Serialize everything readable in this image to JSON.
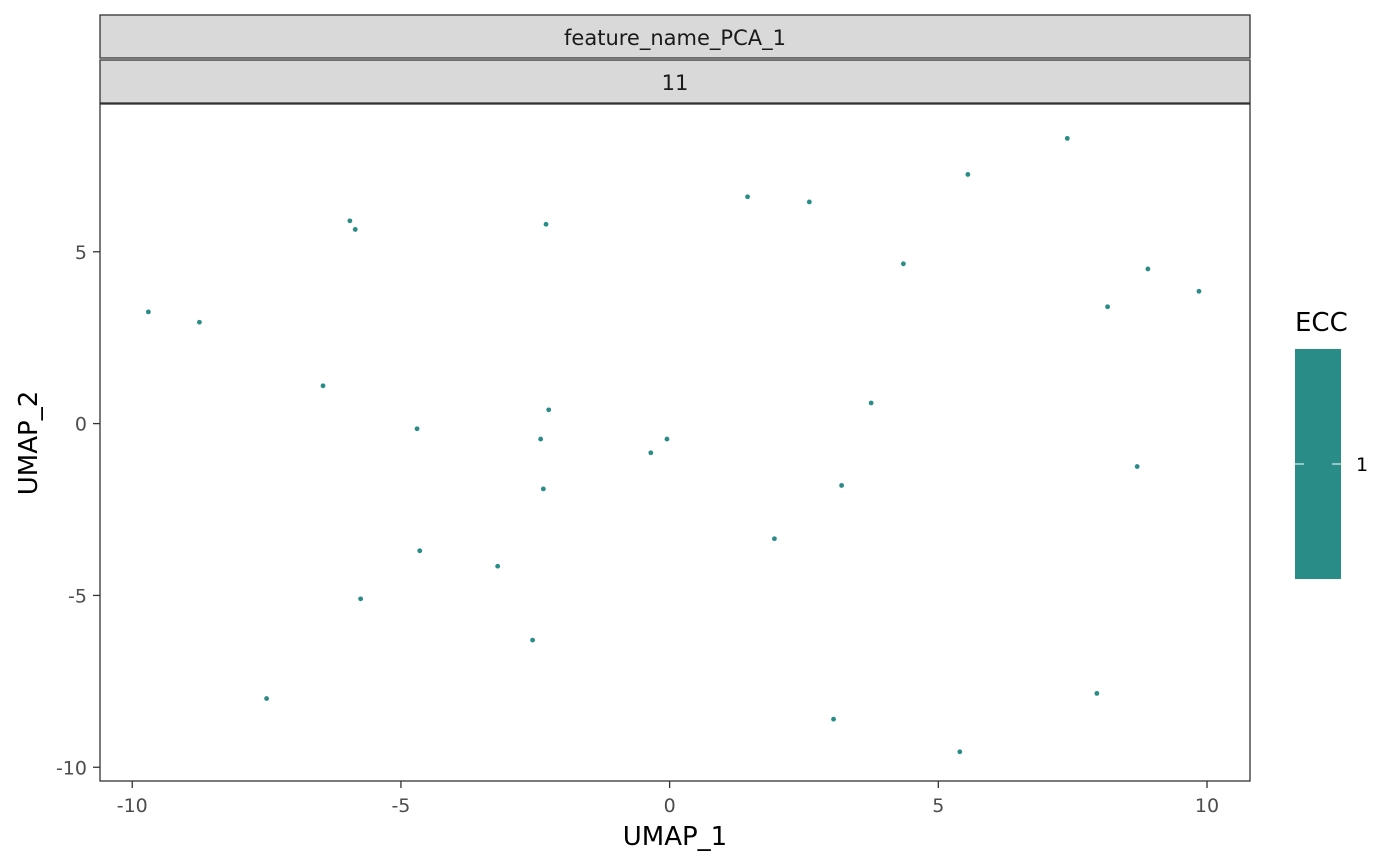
{
  "chart_data": {
    "type": "scatter",
    "facet_strips": [
      "feature_name_PCA_1",
      "11"
    ],
    "xlabel": "UMAP_1",
    "ylabel": "UMAP_2",
    "xlim": [
      -10.6,
      10.8
    ],
    "ylim": [
      -10.4,
      9.3
    ],
    "x_ticks": [
      -10,
      -5,
      0,
      5,
      10
    ],
    "x_tick_labels": [
      "-10",
      "-5",
      "0",
      "5",
      "10"
    ],
    "y_ticks": [
      -10,
      -5,
      0,
      5
    ],
    "y_tick_labels": [
      "-10",
      "-5",
      "0",
      "5"
    ],
    "grid": false,
    "point_color": "#2a8c87",
    "legend": {
      "title": "ECC",
      "position": "right",
      "type": "colorbar",
      "color": "#2a8c87",
      "ticks": [
        1
      ],
      "tick_labels": [
        "1"
      ]
    },
    "points": [
      {
        "x": 7.4,
        "y": 8.3
      },
      {
        "x": 5.55,
        "y": 7.25
      },
      {
        "x": 1.45,
        "y": 6.6
      },
      {
        "x": 2.6,
        "y": 6.45
      },
      {
        "x": -5.95,
        "y": 5.9
      },
      {
        "x": -5.85,
        "y": 5.65
      },
      {
        "x": -2.3,
        "y": 5.8
      },
      {
        "x": 4.35,
        "y": 4.65
      },
      {
        "x": 8.9,
        "y": 4.5
      },
      {
        "x": 9.85,
        "y": 3.85
      },
      {
        "x": 8.15,
        "y": 3.4
      },
      {
        "x": -9.7,
        "y": 3.25
      },
      {
        "x": -8.75,
        "y": 2.95
      },
      {
        "x": -6.45,
        "y": 1.1
      },
      {
        "x": 3.75,
        "y": 0.6
      },
      {
        "x": -2.25,
        "y": 0.4
      },
      {
        "x": -4.7,
        "y": -0.15
      },
      {
        "x": -2.4,
        "y": -0.45
      },
      {
        "x": -0.05,
        "y": -0.45
      },
      {
        "x": -0.35,
        "y": -0.85
      },
      {
        "x": 8.7,
        "y": -1.25
      },
      {
        "x": 3.2,
        "y": -1.8
      },
      {
        "x": -2.35,
        "y": -1.9
      },
      {
        "x": 1.95,
        "y": -3.35
      },
      {
        "x": -4.65,
        "y": -3.7
      },
      {
        "x": -3.2,
        "y": -4.15
      },
      {
        "x": -5.75,
        "y": -5.1
      },
      {
        "x": -2.55,
        "y": -6.3
      },
      {
        "x": -7.5,
        "y": -8.0
      },
      {
        "x": 7.95,
        "y": -7.85
      },
      {
        "x": 3.05,
        "y": -8.6
      },
      {
        "x": 5.4,
        "y": -9.55
      }
    ]
  }
}
